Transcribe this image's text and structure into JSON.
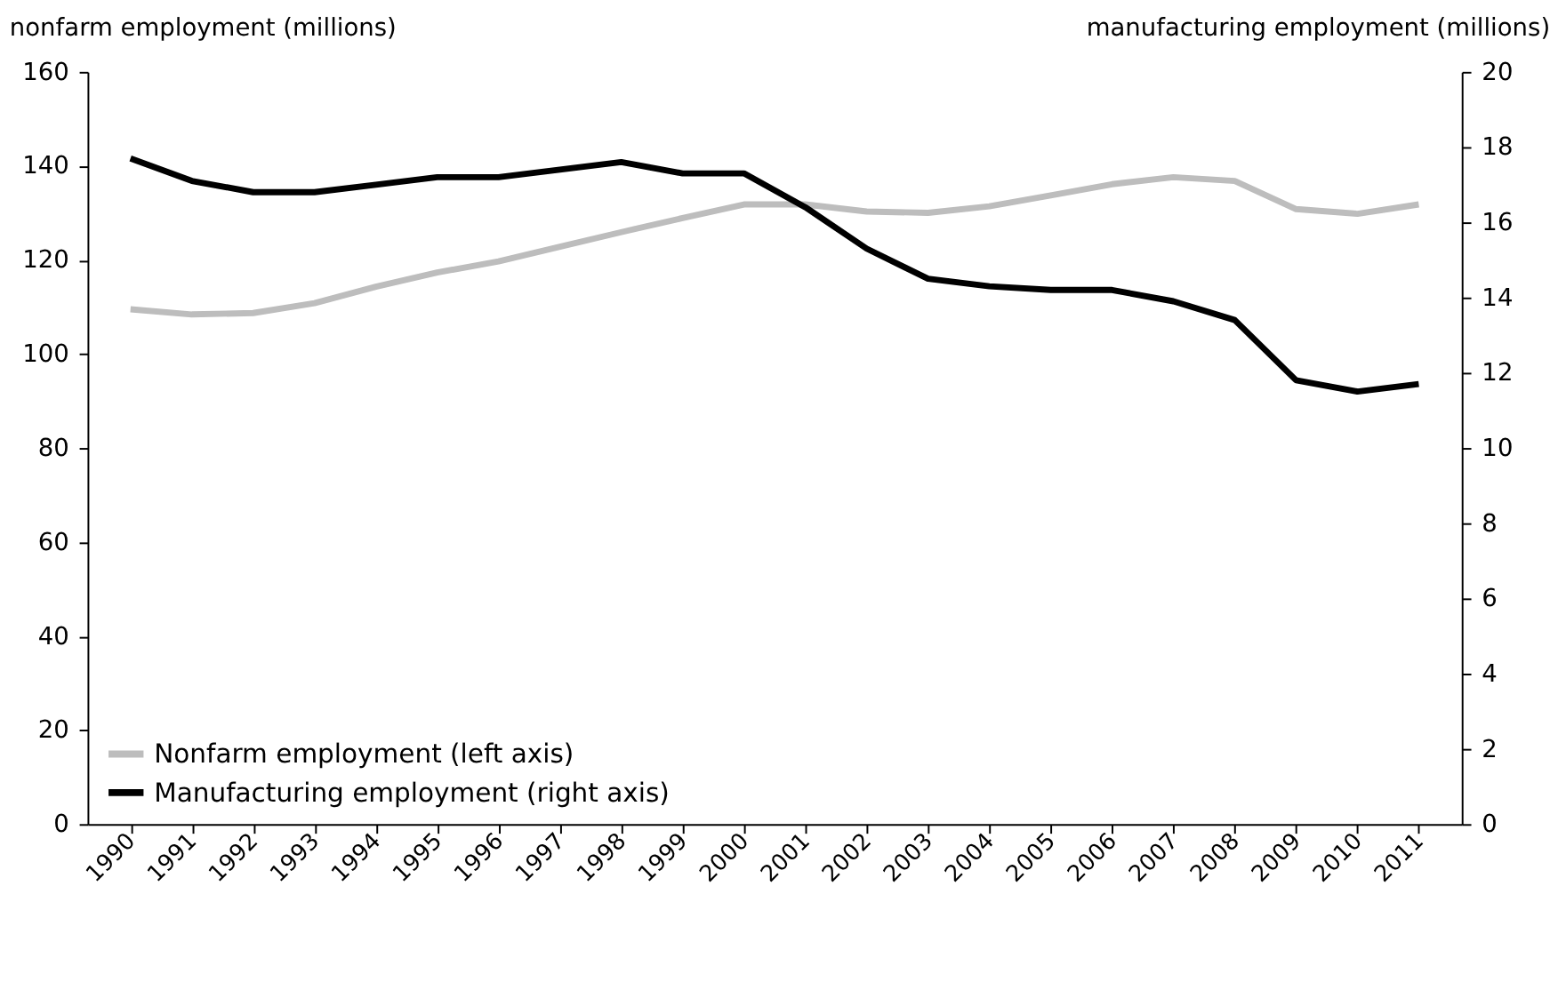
{
  "chart_data": {
    "type": "line",
    "ylabel": "nonfarm employment (millions)",
    "y2label": "manufacturing employment (millions)",
    "categories": [
      "1990",
      "1991",
      "1992",
      "1993",
      "1994",
      "1995",
      "1996",
      "1997",
      "1998",
      "1999",
      "2000",
      "2001",
      "2002",
      "2003",
      "2004",
      "2005",
      "2006",
      "2007",
      "2008",
      "2009",
      "2010",
      "2011"
    ],
    "series": [
      {
        "name": "Nonfarm employment (left axis)",
        "color": "#bdbdbd",
        "values": [
          109.5,
          108.4,
          108.7,
          110.8,
          114.3,
          117.3,
          119.7,
          122.8,
          125.9,
          128.9,
          131.8,
          131.8,
          130.3,
          130.0,
          131.4,
          133.7,
          136.1,
          137.6,
          136.8,
          130.8,
          129.8,
          131.8
        ]
      },
      {
        "name": "Manufacturing employment (right axis)",
        "color": "#000000",
        "axis": "y2",
        "values": [
          17.7,
          17.1,
          16.8,
          16.8,
          17.0,
          17.2,
          17.2,
          17.4,
          17.6,
          17.3,
          17.3,
          16.4,
          15.3,
          14.5,
          14.3,
          14.2,
          14.2,
          13.9,
          13.4,
          11.8,
          11.5,
          11.7
        ]
      }
    ],
    "ylim": [
      0,
      160
    ],
    "yticks": [
      0,
      20,
      40,
      60,
      80,
      100,
      120,
      140,
      160
    ],
    "y2lim": [
      0,
      20
    ],
    "y2ticks": [
      0,
      2,
      4,
      6,
      8,
      10,
      12,
      14,
      16,
      18,
      20
    ],
    "grid": false,
    "legend": "bottom left",
    "line_style": "solid",
    "marker": "none"
  }
}
